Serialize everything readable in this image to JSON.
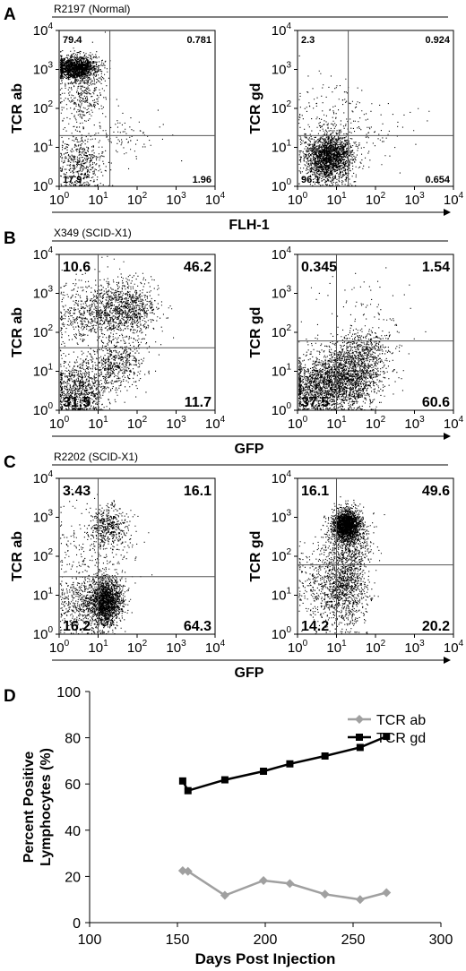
{
  "panels": [
    {
      "letter": "A",
      "sample": "R2197 (Normal)",
      "shared_xlabel": "FLH-1",
      "plots": [
        {
          "ylabel": "TCR ab",
          "quadrants": {
            "ul": "79.4",
            "ur": "0.781",
            "ll": "17.9",
            "lr": "1.96"
          },
          "gates": {
            "x": 20,
            "y": 20
          }
        },
        {
          "ylabel": "TCR gd",
          "quadrants": {
            "ul": "2.3",
            "ur": "0.924",
            "ll": "96.1",
            "lr": "0.654"
          },
          "gates": {
            "x": 20,
            "y": 20
          }
        }
      ]
    },
    {
      "letter": "B",
      "sample": "X349 (SCID-X1)",
      "shared_xlabel": "GFP",
      "plots": [
        {
          "ylabel": "TCR ab",
          "quadrants": {
            "ul": "10.6",
            "ur": "46.2",
            "ll": "31.5",
            "lr": "11.7"
          },
          "gates": {
            "x": 10,
            "y": 40
          }
        },
        {
          "ylabel": "TCR gd",
          "quadrants": {
            "ul": "0.345",
            "ur": "1.54",
            "ll": "37.5",
            "lr": "60.6"
          },
          "gates": {
            "x": 10,
            "y": 60
          }
        }
      ]
    },
    {
      "letter": "C",
      "sample": "R2202 (SCID-X1)",
      "shared_xlabel": "GFP",
      "plots": [
        {
          "ylabel": "TCR ab",
          "quadrants": {
            "ul": "3.43",
            "ur": "16.1",
            "ll": "16.2",
            "lr": "64.3"
          },
          "gates": {
            "x": 10,
            "y": 30
          }
        },
        {
          "ylabel": "TCR gd",
          "quadrants": {
            "ul": "16.1",
            "ur": "49.6",
            "ll": "14.2",
            "lr": "20.2"
          },
          "gates": {
            "x": 10,
            "y": 60
          }
        }
      ]
    }
  ],
  "flow_axis": {
    "ticks": [
      {
        "base": "10",
        "exp": "0"
      },
      {
        "base": "10",
        "exp": "1"
      },
      {
        "base": "10",
        "exp": "2"
      },
      {
        "base": "10",
        "exp": "3"
      },
      {
        "base": "10",
        "exp": "4"
      }
    ]
  },
  "chart_data": {
    "type": "line",
    "letter": "D",
    "xlabel": "Days Post Injection",
    "ylabel_lines": [
      "Percent Positive",
      "Lymphocytes (%)"
    ],
    "xlim": [
      100,
      300
    ],
    "ylim": [
      0,
      100
    ],
    "xticks": [
      100,
      150,
      200,
      250,
      300
    ],
    "yticks": [
      0,
      20,
      40,
      60,
      80,
      100
    ],
    "legend_position": "top-right",
    "series": [
      {
        "name": "TCR ab",
        "color": "#a0a0a0",
        "marker": "diamond",
        "x": [
          153,
          156,
          177,
          199,
          214,
          234,
          254,
          269
        ],
        "y": [
          22.5,
          22.2,
          11.8,
          18.2,
          16.9,
          12.3,
          10.0,
          13.0
        ]
      },
      {
        "name": "TCR gd",
        "color": "#000000",
        "marker": "square",
        "x": [
          153,
          156,
          177,
          199,
          214,
          234,
          254,
          269
        ],
        "y": [
          61.3,
          57.1,
          61.8,
          65.5,
          68.7,
          72.1,
          75.8,
          80.6
        ]
      }
    ]
  }
}
